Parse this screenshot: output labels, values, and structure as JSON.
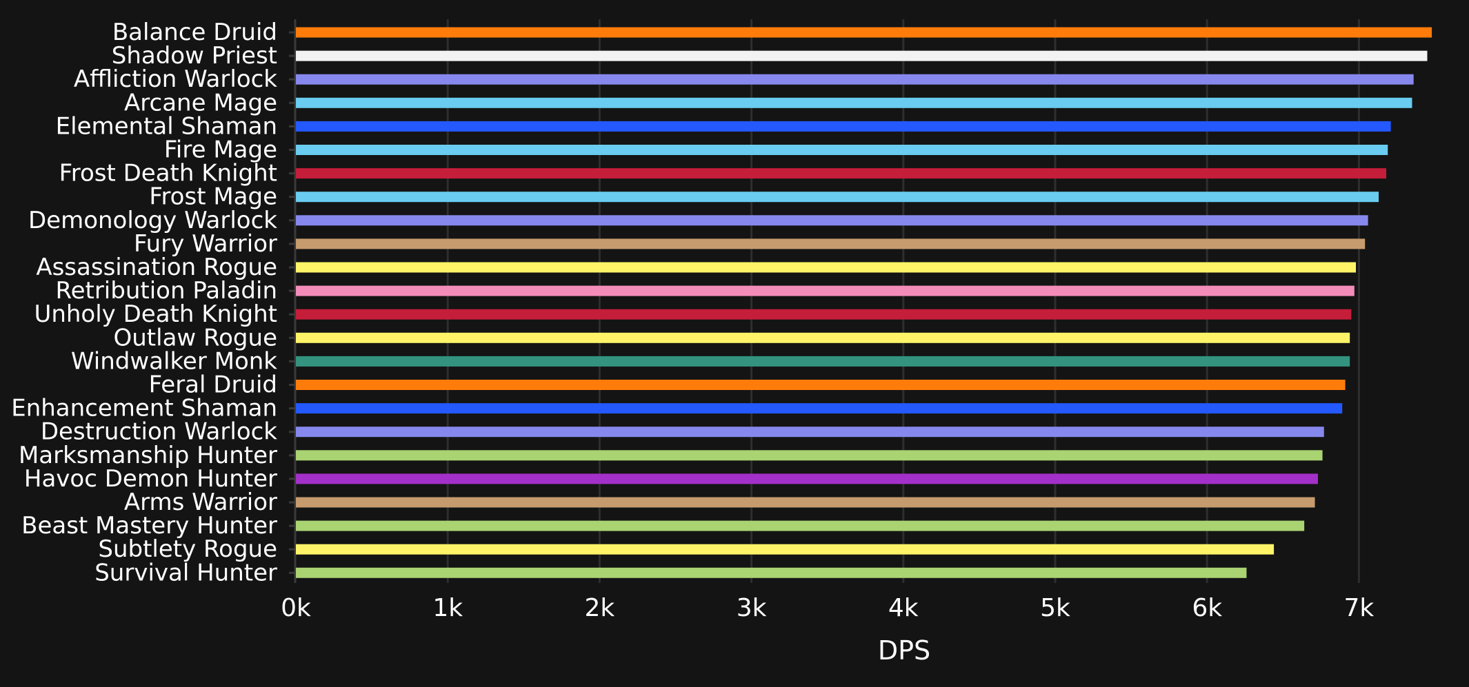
{
  "chart_data": {
    "type": "bar",
    "orientation": "horizontal",
    "title": "",
    "xlabel": "DPS",
    "ylabel": "",
    "xlim": [
      0,
      7600
    ],
    "grid": true,
    "tick_values": [
      0,
      1000,
      2000,
      3000,
      4000,
      5000,
      6000,
      7000
    ],
    "tick_labels": [
      "0k",
      "1k",
      "2k",
      "3k",
      "4k",
      "5k",
      "6k",
      "7k"
    ],
    "categories": [
      "Balance Druid",
      "Shadow Priest",
      "Affliction Warlock",
      "Arcane Mage",
      "Elemental Shaman",
      "Fire Mage",
      "Frost Death Knight",
      "Frost Mage",
      "Demonology Warlock",
      "Fury Warrior",
      "Assassination Rogue",
      "Retribution Paladin",
      "Unholy Death Knight",
      "Outlaw Rogue",
      "Windwalker Monk",
      "Feral Druid",
      "Enhancement Shaman",
      "Destruction Warlock",
      "Marksmanship Hunter",
      "Havoc Demon Hunter",
      "Arms Warrior",
      "Beast Mastery Hunter",
      "Subtlety Rogue",
      "Survival Hunter"
    ],
    "values": [
      7480,
      7450,
      7360,
      7350,
      7210,
      7190,
      7180,
      7130,
      7060,
      7040,
      6980,
      6970,
      6950,
      6940,
      6940,
      6910,
      6890,
      6770,
      6760,
      6730,
      6710,
      6640,
      6440,
      6260
    ],
    "colors": [
      "#ff7c0a",
      "#f2f2f2",
      "#8788ee",
      "#69ccf0",
      "#2359ff",
      "#69ccf0",
      "#c41e3a",
      "#69ccf0",
      "#8788ee",
      "#c69b6d",
      "#fff468",
      "#f48cba",
      "#c41e3a",
      "#fff468",
      "#33937f",
      "#ff7c0a",
      "#2359ff",
      "#8788ee",
      "#aad372",
      "#a330c9",
      "#c69b6d",
      "#aad372",
      "#fff468",
      "#aad372"
    ],
    "background_color": "#141414",
    "grid_color": "#2e2e2e",
    "text_color": "#ffffff"
  }
}
